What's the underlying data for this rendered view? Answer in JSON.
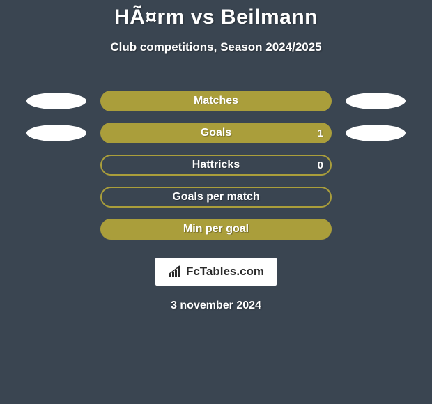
{
  "background_color": "#3a4551",
  "title": "HÃ¤rm vs Beilmann",
  "title_color": "#ffffff",
  "title_fontsize": 30,
  "subtitle": "Club competitions, Season 2024/2025",
  "subtitle_color": "#ffffff",
  "subtitle_fontsize": 17,
  "rows": [
    {
      "label": "Matches",
      "fill": "solid",
      "bar_color": "#aa9e3b",
      "border_color": "#aa9e3b",
      "show_left_ellipse": true,
      "show_right_ellipse": true,
      "value_right": null
    },
    {
      "label": "Goals",
      "fill": "solid",
      "bar_color": "#aa9e3b",
      "border_color": "#aa9e3b",
      "show_left_ellipse": true,
      "show_right_ellipse": true,
      "value_right": "1"
    },
    {
      "label": "Hattricks",
      "fill": "outline",
      "bar_color": "transparent",
      "border_color": "#aa9e3b",
      "show_left_ellipse": false,
      "show_right_ellipse": false,
      "value_right": "0"
    },
    {
      "label": "Goals per match",
      "fill": "outline",
      "bar_color": "transparent",
      "border_color": "#aa9e3b",
      "show_left_ellipse": false,
      "show_right_ellipse": false,
      "value_right": null
    },
    {
      "label": "Min per goal",
      "fill": "solid",
      "bar_color": "#aa9e3b",
      "border_color": "#aa9e3b",
      "show_left_ellipse": false,
      "show_right_ellipse": false,
      "value_right": null
    }
  ],
  "ellipse_color": "#ffffff",
  "brand": {
    "text": "FcTables.com",
    "box_bg": "#ffffff",
    "text_color": "#2a2a2a",
    "icon_color": "#2a2a2a"
  },
  "date": "3 november 2024",
  "date_color": "#ffffff"
}
